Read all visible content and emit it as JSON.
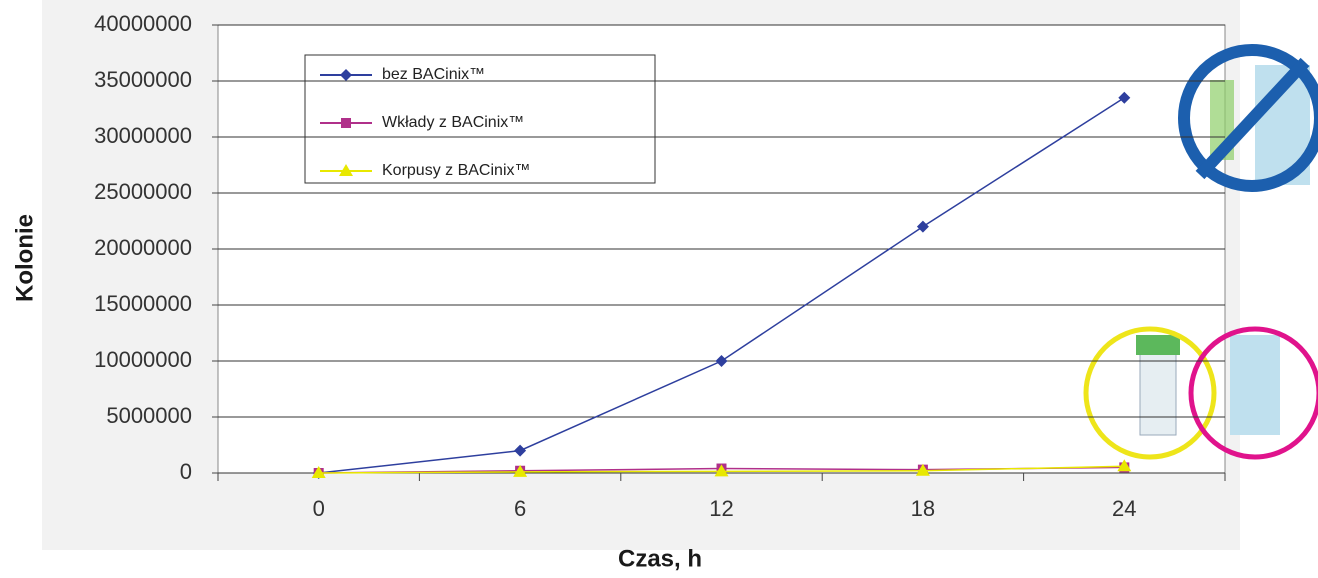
{
  "chart_data": {
    "type": "line",
    "x_label": "Czas, h",
    "y_label": "Kolonie",
    "categories": [
      "0",
      "6",
      "12",
      "18",
      "24"
    ],
    "series": [
      {
        "name": "bez BACinix™",
        "color": "#2e3f9e",
        "marker": "diamond",
        "values": [
          0,
          2000000,
          10000000,
          22000000,
          33500000
        ]
      },
      {
        "name": "Wkłady z BACinix™",
        "color": "#b0308a",
        "marker": "square",
        "values": [
          0,
          200000,
          400000,
          300000,
          500000
        ]
      },
      {
        "name": "Korpusy z BACinix™",
        "color": "#e8e800",
        "marker": "triangle",
        "values": [
          0,
          100000,
          150000,
          200000,
          600000
        ]
      }
    ],
    "ylim": [
      0,
      40000000
    ],
    "yticks": [
      0,
      5000000,
      10000000,
      15000000,
      20000000,
      25000000,
      30000000,
      35000000,
      40000000
    ],
    "grid": true
  }
}
